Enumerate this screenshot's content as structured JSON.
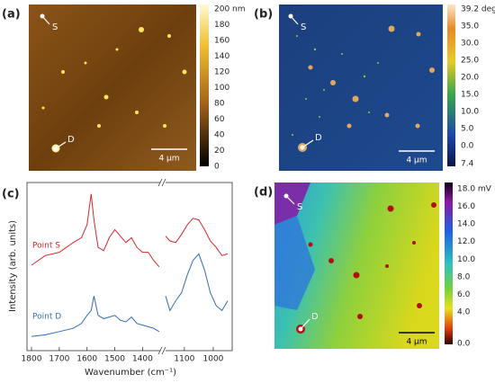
{
  "panels": [
    {
      "label": "(a)",
      "markers": [
        "S",
        "D"
      ],
      "scalebar": "4 µm",
      "colorbar": [
        "200 nm",
        "180",
        "160",
        "140",
        "120",
        "100",
        "80",
        "60",
        "40",
        "20",
        "0"
      ]
    },
    {
      "label": "(b)",
      "markers": [
        "S",
        "D"
      ],
      "scalebar": "4 µm",
      "colorbar": [
        "39.2 deg",
        "35.0",
        "30.0",
        "25.0",
        "20.0",
        "15.0",
        "10.0",
        "5.0",
        "0.0",
        "7.4"
      ]
    },
    {
      "label": "(d)",
      "markers": [
        "S",
        "D"
      ],
      "scalebar": "4 µm",
      "colorbar": [
        "18.0 mV",
        "16.0",
        "14.0",
        "12.0",
        "10.0",
        "8.0",
        "6.0",
        "4.0",
        "0.0"
      ]
    }
  ],
  "chart_data": {
    "type": "line",
    "label": "(c)",
    "xlabel": "Wavenumber (cm⁻¹)",
    "ylabel": "Intensity (arb. units)",
    "xlim": [
      1800,
      950
    ],
    "x_break": [
      1330,
      1165
    ],
    "xticks": [
      1800,
      1700,
      1600,
      1500,
      1400,
      1100,
      1000
    ],
    "ylim": [
      0,
      10
    ],
    "x": [
      1800,
      1750,
      1700,
      1650,
      1620,
      1600,
      1585,
      1575,
      1560,
      1540,
      1520,
      1500,
      1480,
      1460,
      1440,
      1420,
      1400,
      1380,
      1360,
      1340,
      1250,
      1165,
      1150,
      1130,
      1110,
      1090,
      1070,
      1050,
      1030,
      1010,
      990,
      970,
      950
    ],
    "series": [
      {
        "name": "Point S",
        "color": "#d7262b",
        "values": [
          5.0,
          5.6,
          5.8,
          6.4,
          6.7,
          7.5,
          9.4,
          7.8,
          6.1,
          5.9,
          6.7,
          7.2,
          6.8,
          6.4,
          6.7,
          6.1,
          5.8,
          5.8,
          5.3,
          4.9,
          null,
          6.8,
          6.5,
          6.4,
          6.9,
          7.5,
          7.9,
          7.8,
          7.2,
          6.5,
          6.1,
          5.6,
          5.7
        ]
      },
      {
        "name": "Point D",
        "color": "#2f6db5",
        "values": [
          0.6,
          0.7,
          0.9,
          1.1,
          1.4,
          1.9,
          2.2,
          3.1,
          1.9,
          1.7,
          1.8,
          1.9,
          1.6,
          1.5,
          1.8,
          1.4,
          1.3,
          1.2,
          1.1,
          0.9,
          null,
          3.1,
          2.2,
          2.8,
          3.3,
          4.4,
          5.3,
          5.7,
          4.7,
          3.3,
          2.5,
          2.2,
          2.8
        ]
      }
    ]
  }
}
